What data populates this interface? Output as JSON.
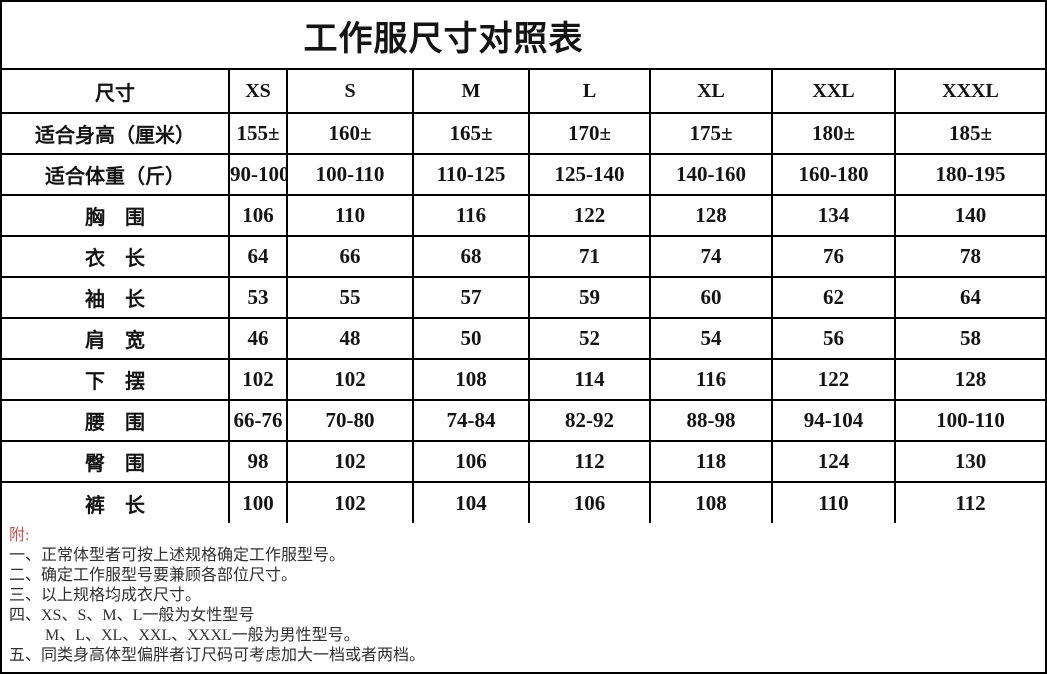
{
  "title": "工作服尺寸对照表",
  "table": {
    "header": [
      "尺寸",
      "XS",
      "S",
      "M",
      "L",
      "XL",
      "XXL",
      "XXXL"
    ],
    "rows": [
      {
        "label": "适合身高（厘米）",
        "values": [
          "155±",
          "160±",
          "165±",
          "170±",
          "175±",
          "180±",
          "185±"
        ]
      },
      {
        "label": "适合体重（斤）",
        "values": [
          "90-100",
          "100-110",
          "110-125",
          "125-140",
          "140-160",
          "160-180",
          "180-195"
        ]
      },
      {
        "label": "胸　围",
        "values": [
          "106",
          "110",
          "116",
          "122",
          "128",
          "134",
          "140"
        ]
      },
      {
        "label": "衣　长",
        "values": [
          "64",
          "66",
          "68",
          "71",
          "74",
          "76",
          "78"
        ]
      },
      {
        "label": "袖　长",
        "values": [
          "53",
          "55",
          "57",
          "59",
          "60",
          "62",
          "64"
        ]
      },
      {
        "label": "肩　宽",
        "values": [
          "46",
          "48",
          "50",
          "52",
          "54",
          "56",
          "58"
        ]
      },
      {
        "label": "下　摆",
        "values": [
          "102",
          "102",
          "108",
          "114",
          "116",
          "122",
          "128"
        ]
      },
      {
        "label": "腰　围",
        "values": [
          "66-76",
          "70-80",
          "74-84",
          "82-92",
          "88-98",
          "94-104",
          "100-110"
        ]
      },
      {
        "label": "臀　围",
        "values": [
          "98",
          "102",
          "106",
          "112",
          "118",
          "124",
          "130"
        ]
      },
      {
        "label": "裤　长",
        "values": [
          "100",
          "102",
          "104",
          "106",
          "108",
          "110",
          "112"
        ]
      }
    ]
  },
  "notes": {
    "heading": "附:",
    "items": [
      "一、正常体型者可按上述规格确定工作服型号。",
      "二、确定工作服型号要兼顾各部位尺寸。",
      "三、以上规格均成衣尺寸。",
      "四、XS、S、M、L一般为女性型号",
      "M、L、XL、XXL、XXXL一般为男性型号。",
      "五、同类身高体型偏胖者订尺码可考虑加大一档或者两档。"
    ]
  },
  "colors": {
    "background": "#ffffff",
    "border": "#000000",
    "table_text": "#141414",
    "notes_text": "#303030",
    "notes_heading_red": "#c65353"
  }
}
